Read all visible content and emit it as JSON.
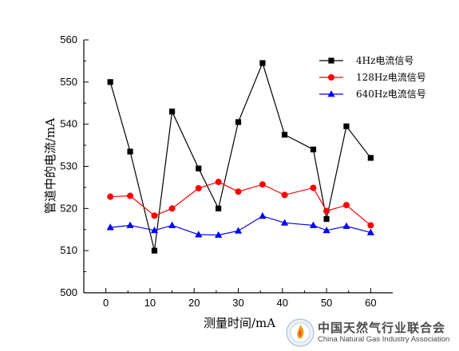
{
  "chart_data": {
    "type": "line",
    "title": "",
    "xlabel": "测量时间/mA",
    "ylabel": "管道中的电流/mA",
    "xlim": [
      -5,
      65
    ],
    "ylim": [
      500,
      560
    ],
    "xticks": [
      0,
      10,
      20,
      30,
      40,
      50,
      60
    ],
    "yticks": [
      500,
      510,
      520,
      530,
      540,
      550,
      560
    ],
    "grid": false,
    "legend_position": "top-right",
    "x": [
      1,
      5.5,
      11,
      15,
      21,
      25.5,
      30,
      35.5,
      40.5,
      47,
      50,
      54.5,
      60
    ],
    "series": [
      {
        "name": "4Hz电流信号",
        "color": "#000000",
        "marker": "square",
        "values": [
          550,
          533.5,
          510,
          543,
          529.5,
          520,
          540.5,
          554.5,
          537.5,
          534,
          517.5,
          539.5,
          532
        ]
      },
      {
        "name": "128Hz电流信号",
        "color": "#ff0000",
        "marker": "circle",
        "values": [
          522.8,
          523,
          518.3,
          520,
          524.8,
          526.3,
          524,
          525.7,
          523.2,
          524.9,
          519.4,
          520.8,
          516
        ]
      },
      {
        "name": "640Hz电流信号",
        "color": "#0000ff",
        "marker": "triangle",
        "values": [
          515.5,
          516,
          514.8,
          516,
          513.8,
          513.7,
          514.7,
          518.2,
          516.6,
          516,
          514.8,
          515.8,
          514.3
        ]
      }
    ]
  },
  "watermark": {
    "text_cn": "中国天然气行业联合会",
    "text_en": "China Natural Gas Industry Association"
  }
}
